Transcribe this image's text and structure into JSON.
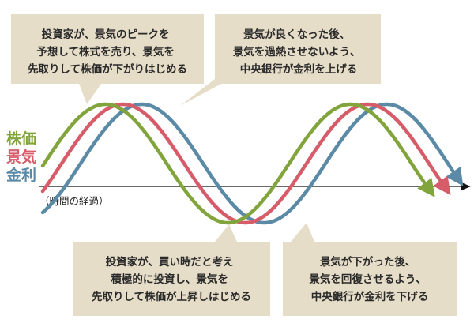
{
  "colors": {
    "stock": "#82a43c",
    "economy": "#d65c6a",
    "rate": "#5b8aa6",
    "box": "#e6ddc8",
    "axis": "#111111"
  },
  "labels": {
    "stock": "株価",
    "economy": "景気",
    "rate": "金利"
  },
  "axis": {
    "label": "（時間の経過）"
  },
  "callouts": {
    "top_left": [
      "投資家が、景気のピークを",
      "予想して株式を売り、景気を",
      "先取りして株価が下がりはじめる"
    ],
    "top_right": [
      "景気が良くなった後、",
      "景気を過熱させないよう、",
      "中央銀行が金利を上げる"
    ],
    "bottom_left": [
      "投資家が、買い時だと考え",
      "積極的に投資し、景気を",
      "先取りして株価が上昇しはじめる"
    ],
    "bottom_right": [
      "景気が下がった後、",
      "景気を回復させるよう、",
      "中央銀行が金利を下げる"
    ]
  }
}
